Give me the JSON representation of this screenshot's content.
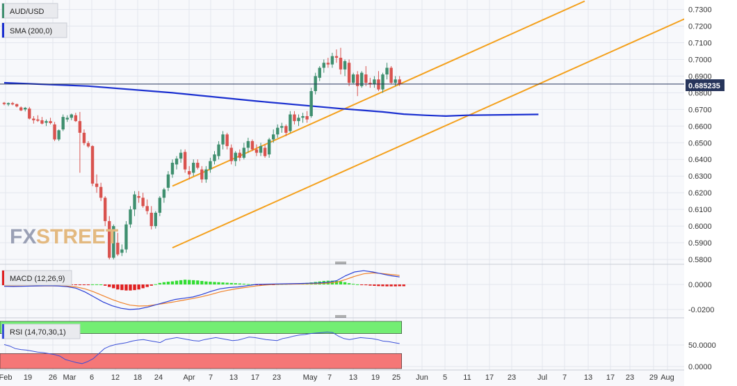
{
  "labels": {
    "symbol": "AUD/USD",
    "sma": "SMA (200,0)",
    "macd": "MACD (12,26,9)",
    "rsi": "RSI (14,70,30,1)",
    "watermark_fx": "FX",
    "watermark_street": "STREET",
    "current_price": "0.685235"
  },
  "colors": {
    "up": "#3f8f6f",
    "down": "#d9534f",
    "sma": "#1a2fd0",
    "channel": "#f4a01b",
    "price_line": "#27355b",
    "macd_line": "#2a3fd6",
    "signal_line": "#f0822a",
    "hist_pos": "#33dd33",
    "hist_neg": "#e02020",
    "rsi_line": "#3a4fd8",
    "rsi_overbought": "#73ee73",
    "rsi_oversold": "#f57777"
  },
  "chart_data": [
    {
      "type": "candlestick",
      "title": "AUD/USD",
      "y_ticks": [
        "0.5800",
        "0.5900",
        "0.6000",
        "0.6100",
        "0.6200",
        "0.6300",
        "0.6400",
        "0.6500",
        "0.6600",
        "0.6700",
        "0.6800",
        "0.6900",
        "0.7000",
        "0.7100",
        "0.7200",
        "0.7300"
      ],
      "ylim": [
        0.58,
        0.734
      ],
      "x_labels": [
        "Feb",
        "19",
        "26",
        "Mar",
        "6",
        "12",
        "18",
        "24",
        "Apr",
        "7",
        "13",
        "17",
        "23",
        "May",
        "7",
        "13",
        "19",
        "25",
        "Jun",
        "5",
        "11",
        "17",
        "23",
        "Jul",
        "7",
        "13",
        "17",
        "23",
        "29",
        "Aug"
      ],
      "last_price": 0.685235,
      "ohlc": [
        [
          0.674,
          0.6745,
          0.6725,
          0.6732
        ],
        [
          0.673,
          0.6742,
          0.672,
          0.6738
        ],
        [
          0.6738,
          0.6745,
          0.6725,
          0.673
        ],
        [
          0.6732,
          0.6735,
          0.6712,
          0.6718
        ],
        [
          0.6712,
          0.6718,
          0.669,
          0.6694
        ],
        [
          0.67,
          0.6715,
          0.6688,
          0.671
        ],
        [
          0.6705,
          0.6715,
          0.664,
          0.6645
        ],
        [
          0.6645,
          0.666,
          0.6615,
          0.6635
        ],
        [
          0.664,
          0.6665,
          0.6625,
          0.6632
        ],
        [
          0.6635,
          0.6655,
          0.661,
          0.6615
        ],
        [
          0.662,
          0.664,
          0.66,
          0.663
        ],
        [
          0.663,
          0.665,
          0.661,
          0.6618
        ],
        [
          0.661,
          0.6625,
          0.651,
          0.652
        ],
        [
          0.652,
          0.658,
          0.651,
          0.6575
        ],
        [
          0.658,
          0.667,
          0.657,
          0.6655
        ],
        [
          0.664,
          0.6665,
          0.6625,
          0.665
        ],
        [
          0.665,
          0.6675,
          0.6635,
          0.667
        ],
        [
          0.6665,
          0.668,
          0.6625,
          0.663
        ],
        [
          0.663,
          0.6685,
          0.632,
          0.656
        ],
        [
          0.656,
          0.658,
          0.6485,
          0.6498
        ],
        [
          0.6498,
          0.651,
          0.647,
          0.6478
        ],
        [
          0.648,
          0.6485,
          0.624,
          0.6255
        ],
        [
          0.6255,
          0.631,
          0.62,
          0.6235
        ],
        [
          0.6235,
          0.626,
          0.615,
          0.617
        ],
        [
          0.617,
          0.618,
          0.6,
          0.603
        ],
        [
          0.603,
          0.606,
          0.58,
          0.581
        ],
        [
          0.581,
          0.601,
          0.58,
          0.6
        ],
        [
          0.59,
          0.596,
          0.582,
          0.583
        ],
        [
          0.584,
          0.589,
          0.582,
          0.586
        ],
        [
          0.586,
          0.603,
          0.584,
          0.601
        ],
        [
          0.601,
          0.612,
          0.599,
          0.61
        ],
        [
          0.61,
          0.621,
          0.606,
          0.619
        ],
        [
          0.618,
          0.621,
          0.614,
          0.617
        ],
        [
          0.617,
          0.62,
          0.611,
          0.612
        ],
        [
          0.612,
          0.616,
          0.607,
          0.609
        ],
        [
          0.608,
          0.612,
          0.598,
          0.6
        ],
        [
          0.6,
          0.609,
          0.5985,
          0.608
        ],
        [
          0.608,
          0.618,
          0.606,
          0.617
        ],
        [
          0.617,
          0.623,
          0.614,
          0.622
        ],
        [
          0.623,
          0.633,
          0.621,
          0.631
        ],
        [
          0.631,
          0.64,
          0.629,
          0.638
        ],
        [
          0.637,
          0.642,
          0.634,
          0.6405
        ],
        [
          0.6405,
          0.646,
          0.638,
          0.644
        ],
        [
          0.6445,
          0.646,
          0.632,
          0.634
        ],
        [
          0.633,
          0.636,
          0.628,
          0.631
        ],
        [
          0.632,
          0.64,
          0.63,
          0.638
        ],
        [
          0.638,
          0.64,
          0.634,
          0.635
        ],
        [
          0.634,
          0.636,
          0.626,
          0.628
        ],
        [
          0.628,
          0.636,
          0.626,
          0.634
        ],
        [
          0.634,
          0.641,
          0.632,
          0.639
        ],
        [
          0.639,
          0.645,
          0.637,
          0.643
        ],
        [
          0.642,
          0.651,
          0.64,
          0.649
        ],
        [
          0.649,
          0.657,
          0.646,
          0.655
        ],
        [
          0.655,
          0.656,
          0.646,
          0.648
        ],
        [
          0.647,
          0.649,
          0.637,
          0.639
        ],
        [
          0.639,
          0.645,
          0.636,
          0.644
        ],
        [
          0.644,
          0.646,
          0.639,
          0.641
        ],
        [
          0.641,
          0.65,
          0.64,
          0.647
        ],
        [
          0.647,
          0.653,
          0.644,
          0.651
        ],
        [
          0.651,
          0.652,
          0.645,
          0.646
        ],
        [
          0.646,
          0.649,
          0.642,
          0.644
        ],
        [
          0.644,
          0.65,
          0.642,
          0.648
        ],
        [
          0.647,
          0.649,
          0.641,
          0.642
        ],
        [
          0.643,
          0.653,
          0.641,
          0.652
        ],
        [
          0.652,
          0.658,
          0.65,
          0.655
        ],
        [
          0.655,
          0.661,
          0.653,
          0.659
        ],
        [
          0.659,
          0.662,
          0.656,
          0.66
        ],
        [
          0.66,
          0.661,
          0.654,
          0.656
        ],
        [
          0.657,
          0.669,
          0.656,
          0.667
        ],
        [
          0.667,
          0.669,
          0.661,
          0.663
        ],
        [
          0.663,
          0.667,
          0.66,
          0.665
        ],
        [
          0.665,
          0.668,
          0.662,
          0.666
        ],
        [
          0.666,
          0.669,
          0.662,
          0.664
        ],
        [
          0.666,
          0.683,
          0.665,
          0.681
        ],
        [
          0.681,
          0.692,
          0.679,
          0.69
        ],
        [
          0.689,
          0.696,
          0.687,
          0.695
        ],
        [
          0.695,
          0.7,
          0.692,
          0.698
        ],
        [
          0.698,
          0.701,
          0.695,
          0.697
        ],
        [
          0.697,
          0.704,
          0.695,
          0.702
        ],
        [
          0.702,
          0.706,
          0.698,
          0.701
        ],
        [
          0.701,
          0.707,
          0.691,
          0.694
        ],
        [
          0.694,
          0.7,
          0.69,
          0.699
        ],
        [
          0.698,
          0.7,
          0.684,
          0.686
        ],
        [
          0.686,
          0.692,
          0.685,
          0.691
        ],
        [
          0.691,
          0.693,
          0.678,
          0.684
        ],
        [
          0.684,
          0.693,
          0.683,
          0.692
        ],
        [
          0.691,
          0.696,
          0.684,
          0.686
        ],
        [
          0.686,
          0.689,
          0.683,
          0.685
        ],
        [
          0.685,
          0.69,
          0.683,
          0.688
        ],
        [
          0.688,
          0.693,
          0.681,
          0.682
        ],
        [
          0.682,
          0.692,
          0.68,
          0.691
        ],
        [
          0.691,
          0.698,
          0.688,
          0.695
        ],
        [
          0.695,
          0.696,
          0.685,
          0.686
        ],
        [
          0.686,
          0.69,
          0.684,
          0.688
        ],
        [
          0.688,
          0.69,
          0.684,
          0.6852
        ]
      ],
      "sma_200": [
        [
          0,
          0.686
        ],
        [
          20,
          0.684
        ],
        [
          40,
          0.68
        ],
        [
          60,
          0.675
        ],
        [
          80,
          0.6705
        ],
        [
          85,
          0.6695
        ],
        [
          90,
          0.6685
        ],
        [
          95,
          0.6672
        ],
        [
          100,
          0.6665
        ],
        [
          105,
          0.666
        ],
        [
          110,
          0.6665
        ],
        [
          120,
          0.6668
        ],
        [
          127,
          0.667
        ]
      ],
      "channel_upper": [
        [
          40,
          0.624
        ],
        [
          138,
          0.735
        ]
      ],
      "channel_lower": [
        [
          40,
          0.587
        ],
        [
          165,
          0.728
        ]
      ]
    },
    {
      "type": "histogram+line",
      "title": "MACD (12,26,9)",
      "y_ticks": [
        "0.0000",
        "-0.0200"
      ],
      "ylim": [
        -0.024,
        0.016
      ],
      "histogram": [
        0,
        0,
        0,
        0.0002,
        0.0001,
        0,
        0,
        -0.0002,
        -0.0002,
        -0.0001,
        0,
        0.0001,
        0.0001,
        -0.0001,
        -0.0002,
        -0.0003,
        -0.0003,
        -0.0002,
        -0.0002,
        -0.0001,
        -0.0001,
        0.0001,
        0.0001,
        0,
        -0.001,
        -0.002,
        -0.003,
        -0.004,
        -0.0045,
        -0.0048,
        -0.0048,
        -0.0045,
        -0.004,
        -0.003,
        -0.002,
        -0.001,
        0.0002,
        0.0012,
        0.0018,
        0.0022,
        0.0025,
        0.003,
        0.0034,
        0.0038,
        0.0036,
        0.0034,
        0.0032,
        0.0028,
        0.0024,
        0.0022,
        0.002,
        0.0018,
        0.0016,
        0.0014,
        0.0012,
        0.001,
        0.0008,
        0.0006,
        0.0003,
        0.0001,
        -0.0002,
        -0.0003,
        -0.0004,
        -0.0002,
        -0.0001,
        0.0002,
        0.0003,
        0.0004,
        0.0005,
        0.0006,
        0.0008,
        0.001,
        0.0012,
        0.0016,
        0.002,
        0.0024,
        0.0028,
        0.003,
        0.003,
        0.0028,
        0.0024,
        0.0018,
        0.001,
        0.0005,
        0.0001,
        -0.0003,
        -0.0006,
        -0.0009,
        -0.0011,
        -0.0013,
        -0.0014,
        -0.0015,
        -0.0015,
        -0.0015,
        -0.0014,
        -0.0014
      ],
      "macd": [
        -0.0015,
        -0.0016,
        -0.0015,
        -0.0013,
        -0.0011,
        -0.001,
        -0.0012,
        -0.0018,
        -0.003,
        -0.006,
        -0.01,
        -0.014,
        -0.017,
        -0.019,
        -0.02,
        -0.0195,
        -0.018,
        -0.016,
        -0.014,
        -0.012,
        -0.011,
        -0.01,
        -0.008,
        -0.0055,
        -0.0035,
        -0.0025,
        -0.002,
        -0.001,
        0.0,
        0.0002,
        0.0004,
        0.0005,
        0.0006,
        0.0008,
        0.001,
        0.0012,
        0.0018,
        0.003,
        0.007,
        0.01,
        0.011,
        0.01,
        0.0085,
        0.007,
        0.006
      ],
      "signal": [
        -0.0012,
        -0.0013,
        -0.0013,
        -0.0013,
        -0.0012,
        -0.0012,
        -0.0012,
        -0.0014,
        -0.002,
        -0.0035,
        -0.006,
        -0.009,
        -0.012,
        -0.0145,
        -0.0165,
        -0.0172,
        -0.017,
        -0.016,
        -0.015,
        -0.0138,
        -0.0125,
        -0.0112,
        -0.0098,
        -0.008,
        -0.006,
        -0.0045,
        -0.0033,
        -0.0022,
        -0.0012,
        -0.0005,
        0.0,
        0.0002,
        0.0003,
        0.0004,
        0.0006,
        0.0008,
        0.0011,
        0.0018,
        0.004,
        0.0065,
        0.0085,
        0.0092,
        0.0088,
        0.008,
        0.0072
      ]
    },
    {
      "type": "line",
      "title": "RSI (14,70,30,1)",
      "y_ticks": [
        "50.0000",
        "0.0000"
      ],
      "ylim": [
        0,
        100
      ],
      "bands": {
        "overbought": 70,
        "oversold": 30
      },
      "rsi": [
        48,
        45,
        40,
        38,
        37,
        35,
        33,
        32,
        30,
        28,
        25,
        18,
        15,
        12,
        10,
        14,
        20,
        30,
        40,
        45,
        48,
        50,
        52,
        55,
        57,
        58,
        56,
        54,
        52,
        58,
        60,
        62,
        60,
        58,
        56,
        55,
        58,
        60,
        62,
        60,
        58,
        56,
        57,
        60,
        63,
        62,
        60,
        58,
        57,
        56,
        60,
        62,
        65,
        67,
        68,
        70,
        71,
        72,
        73,
        72,
        65,
        60,
        58,
        60,
        62,
        61,
        60,
        58,
        55,
        54,
        52,
        50
      ]
    }
  ]
}
